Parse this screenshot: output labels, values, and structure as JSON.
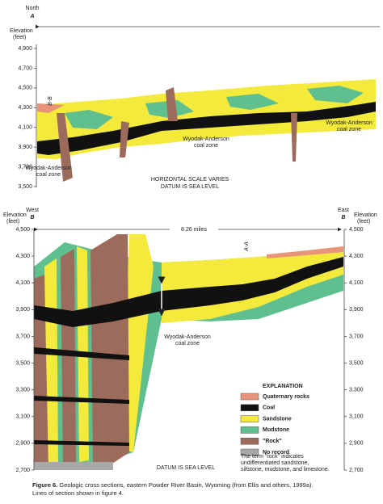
{
  "top": {
    "direction": "North",
    "section_end": "A",
    "elevation_label": [
      "Elevation",
      "(feet)"
    ],
    "yticks": [
      "4,900",
      "4,700",
      "4,500",
      "4,300",
      "4,100",
      "3,900",
      "3,700",
      "3,500"
    ],
    "section_marker": "B-B",
    "coal_zone_labels": [
      [
        "Wyodak-Anderson",
        "coal zone"
      ],
      [
        "Wyodak-Anderson",
        "coal zone"
      ],
      [
        "Wyodak-Anderson",
        "coal zone"
      ]
    ],
    "notes": [
      "HORIZONTAL SCALE VARIES",
      "DATUM IS SEA LEVEL"
    ]
  },
  "bottom": {
    "west": "West",
    "east": "East",
    "west_end": "B",
    "east_end": "B",
    "elevation_label": [
      "Elevation",
      "(feet)"
    ],
    "yticks": [
      "4,500",
      "4,300",
      "4,100",
      "3,900",
      "3,700",
      "3,500",
      "3,300",
      "3,100",
      "2,900",
      "2,700"
    ],
    "distance": "8.26 miles",
    "section_marker": "A-A",
    "coal_zone_label": [
      "Wyodak-Anderson",
      "coal zone"
    ],
    "note": "DATUM IS SEA LEVEL"
  },
  "legend": {
    "title": "EXPLANATION",
    "items": [
      "Quaternary rocks",
      "Coal",
      "Sandstone",
      "Mudstone",
      "\"Rock\"",
      "No record"
    ],
    "note": [
      "The term \"rock\" indicates",
      "undifferentiated sandstone,",
      "siltstone, mudstone, and limestone."
    ]
  },
  "caption": {
    "label": "Figure 6.",
    "lines": [
      "Geologic cross sections, eastern Powder River Basin, Wyoming (from Ellis and others, 1999a).",
      "Lines of section shown in figure 4."
    ]
  }
}
